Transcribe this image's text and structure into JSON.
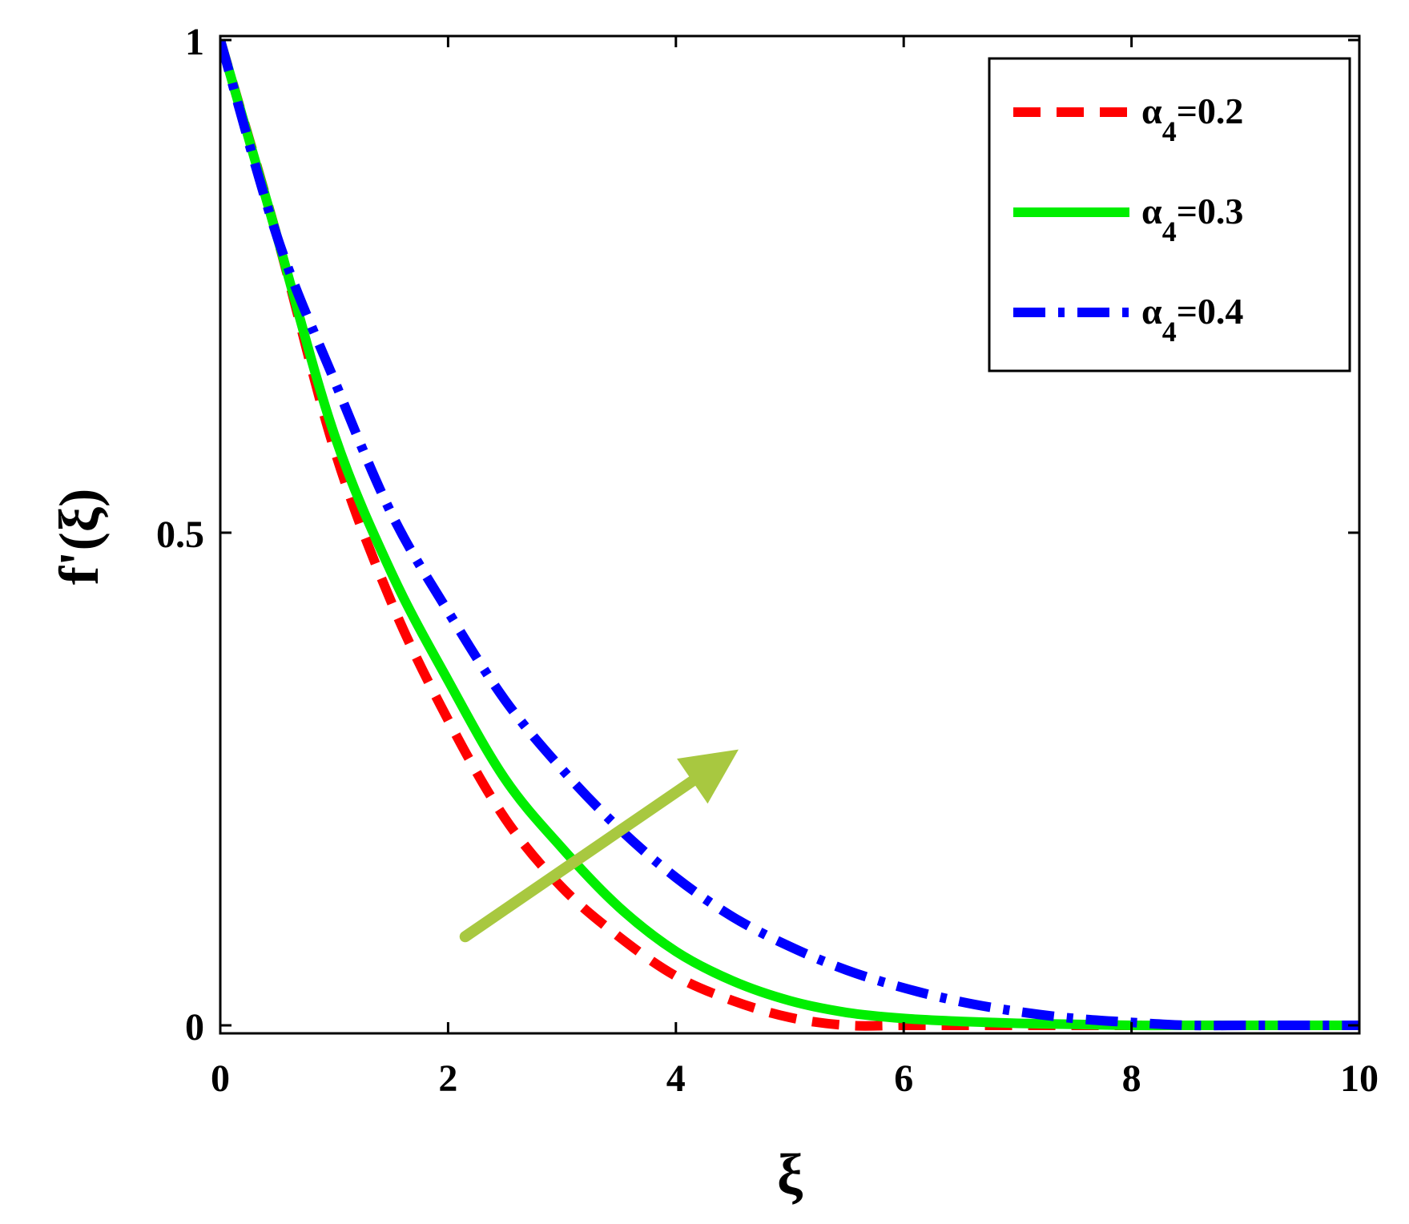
{
  "chart_data": {
    "type": "line",
    "xlabel": "ξ",
    "ylabel": "f'(ξ)",
    "xlim": [
      0,
      10
    ],
    "ylim": [
      0,
      1
    ],
    "x_ticks": [
      0,
      2,
      4,
      6,
      8,
      10
    ],
    "x_tick_labels": [
      "0",
      "2",
      "4",
      "6",
      "8",
      "10"
    ],
    "y_ticks": [
      0,
      0.5,
      1
    ],
    "y_tick_labels": [
      "0",
      "0.5",
      "1"
    ],
    "grid": false,
    "legend_position": "top-right",
    "x": [
      0,
      0.5,
      1,
      1.5,
      2,
      2.5,
      3,
      3.5,
      4,
      4.5,
      5,
      5.5,
      6,
      6.5,
      7,
      7.5,
      8,
      8.5,
      9,
      9.5,
      10
    ],
    "series": [
      {
        "name": "α4=0.2",
        "name_base": "α",
        "name_sub": "4",
        "name_value": "=0.2",
        "color": "#ff0000",
        "style": "dashed",
        "values": [
          1.0,
          0.8,
          0.585,
          0.43,
          0.31,
          0.21,
          0.14,
          0.09,
          0.05,
          0.025,
          0.008,
          0.0,
          0.0,
          0.0,
          0.0,
          0.0,
          0.0,
          0.0,
          0.0,
          0.0,
          0.0
        ]
      },
      {
        "name": "α4=0.3",
        "name_base": "α",
        "name_sub": "4",
        "name_value": "=0.3",
        "color": "#00ee00",
        "style": "solid",
        "values": [
          1.0,
          0.8,
          0.6,
          0.46,
          0.35,
          0.25,
          0.18,
          0.12,
          0.075,
          0.045,
          0.025,
          0.013,
          0.007,
          0.004,
          0.002,
          0.001,
          0.0,
          0.0,
          0.0,
          0.0,
          0.0
        ]
      },
      {
        "name": "α4=0.4",
        "name_base": "α",
        "name_sub": "4",
        "name_value": "=0.4",
        "color": "#0000ff",
        "style": "dashdot",
        "values": [
          1.0,
          0.8,
          0.655,
          0.52,
          0.42,
          0.33,
          0.26,
          0.2,
          0.15,
          0.11,
          0.08,
          0.056,
          0.038,
          0.024,
          0.014,
          0.007,
          0.003,
          0.0,
          0.0,
          0.0,
          0.0
        ]
      }
    ],
    "annotations": [
      {
        "type": "arrow",
        "color": "#a8c840",
        "from": [
          2.15,
          0.09
        ],
        "to": [
          4.55,
          0.28
        ]
      }
    ]
  }
}
